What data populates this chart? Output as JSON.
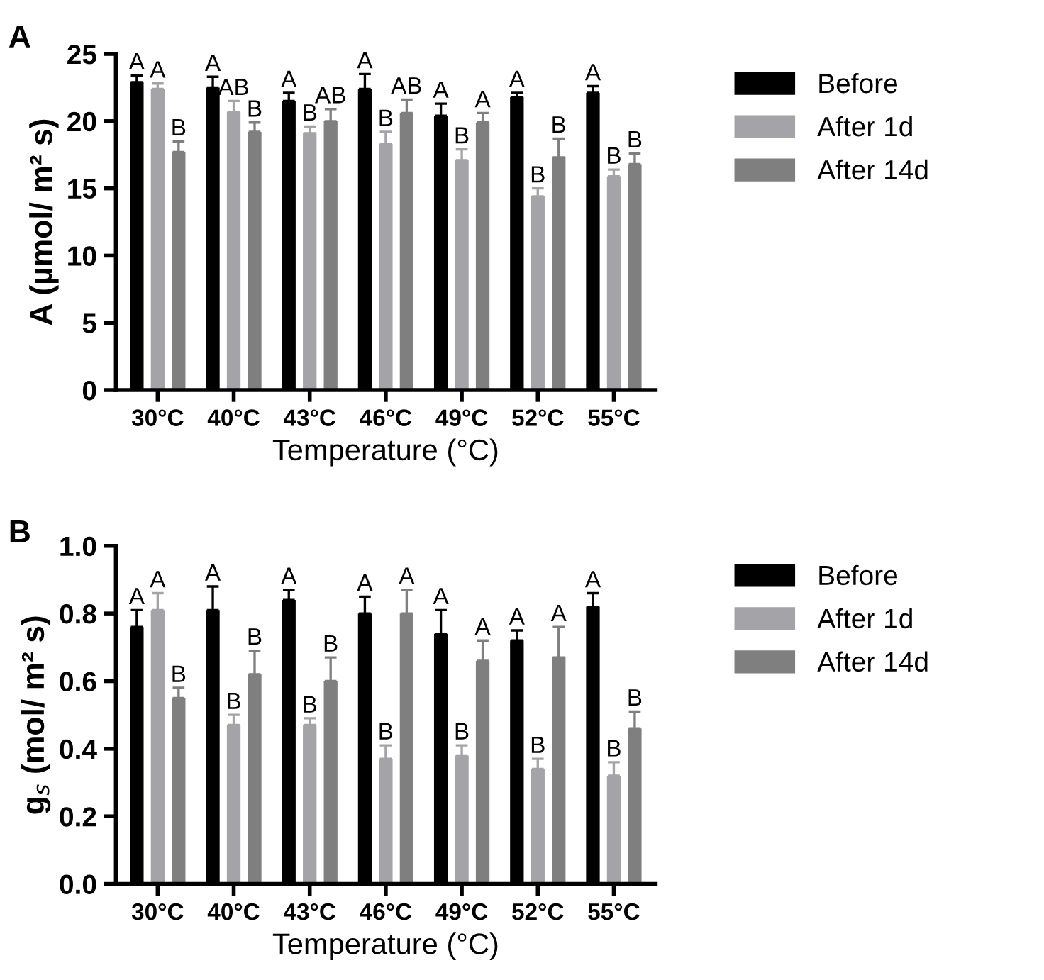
{
  "chart_data": [
    {
      "type": "bar",
      "title": "A",
      "xlabel": "Temperature (°C)",
      "ylabel": "A (µmol/ m² s)",
      "categories": [
        "30°C",
        "40°C",
        "43°C",
        "46°C",
        "49°C",
        "52°C",
        "55°C"
      ],
      "series": [
        {
          "name": "Before",
          "color": "#000000",
          "values": [
            22.9,
            22.5,
            21.5,
            22.4,
            20.4,
            21.8,
            22.1
          ],
          "errors": [
            0.5,
            0.8,
            0.6,
            1.1,
            0.9,
            0.3,
            0.5
          ],
          "value_labels": [
            "A",
            "A",
            "A",
            "A",
            "A",
            "A",
            "A"
          ]
        },
        {
          "name": "After 1d",
          "color": "#a3a3a8",
          "values": [
            22.4,
            20.7,
            19.1,
            18.3,
            17.1,
            14.4,
            15.9
          ],
          "errors": [
            0.4,
            0.8,
            0.5,
            0.9,
            0.8,
            0.6,
            0.5
          ],
          "value_labels": [
            "A",
            "AB",
            "B",
            "B",
            "B",
            "B",
            "B"
          ]
        },
        {
          "name": "After 14d",
          "color": "#7f7f7f",
          "values": [
            17.7,
            19.2,
            20.0,
            20.6,
            19.9,
            17.3,
            16.8
          ],
          "errors": [
            0.8,
            0.7,
            0.9,
            1.0,
            0.7,
            1.4,
            0.8
          ],
          "value_labels": [
            "B",
            "B",
            "AB",
            "AB",
            "A",
            "B",
            "B"
          ]
        }
      ],
      "ylim": [
        0,
        25
      ],
      "yticks": [
        0,
        5,
        10,
        15,
        20,
        25
      ],
      "legend": "top right",
      "grid": false
    },
    {
      "type": "bar",
      "title": "B",
      "xlabel": "Temperature (°C)",
      "ylabel": "g$_{s}$ (mol/ m² s)",
      "categories": [
        "30°C",
        "40°C",
        "43°C",
        "46°C",
        "49°C",
        "52°C",
        "55°C"
      ],
      "series": [
        {
          "name": "Before",
          "color": "#000000",
          "values": [
            0.76,
            0.81,
            0.84,
            0.8,
            0.74,
            0.72,
            0.82
          ],
          "errors": [
            0.05,
            0.07,
            0.03,
            0.05,
            0.07,
            0.03,
            0.04
          ],
          "value_labels": [
            "A",
            "A",
            "A",
            "A",
            "A",
            "A",
            "A"
          ]
        },
        {
          "name": "After 1d",
          "color": "#a3a3a8",
          "values": [
            0.81,
            0.47,
            0.47,
            0.37,
            0.38,
            0.34,
            0.32
          ],
          "errors": [
            0.05,
            0.03,
            0.02,
            0.04,
            0.03,
            0.03,
            0.04
          ],
          "value_labels": [
            "A",
            "B",
            "B",
            "B",
            "B",
            "B",
            "B"
          ]
        },
        {
          "name": "After 14d",
          "color": "#7f7f7f",
          "values": [
            0.55,
            0.62,
            0.6,
            0.8,
            0.66,
            0.67,
            0.46
          ],
          "errors": [
            0.03,
            0.07,
            0.07,
            0.07,
            0.06,
            0.09,
            0.05
          ],
          "value_labels": [
            "B",
            "B",
            "B",
            "A",
            "A",
            "A",
            "B"
          ]
        }
      ],
      "ylim": [
        0.0,
        1.0
      ],
      "yticks": [
        {
          "value": 0,
          "label": "0.0"
        },
        {
          "value": 0.2,
          "label": "0.2"
        },
        {
          "value": 0.4,
          "label": "0.4"
        },
        {
          "value": 0.6,
          "label": "0.6"
        },
        {
          "value": 0.8,
          "label": "0.8"
        },
        {
          "value": 1.0,
          "label": "1.0"
        }
      ],
      "legend": "top right",
      "grid": false
    }
  ]
}
